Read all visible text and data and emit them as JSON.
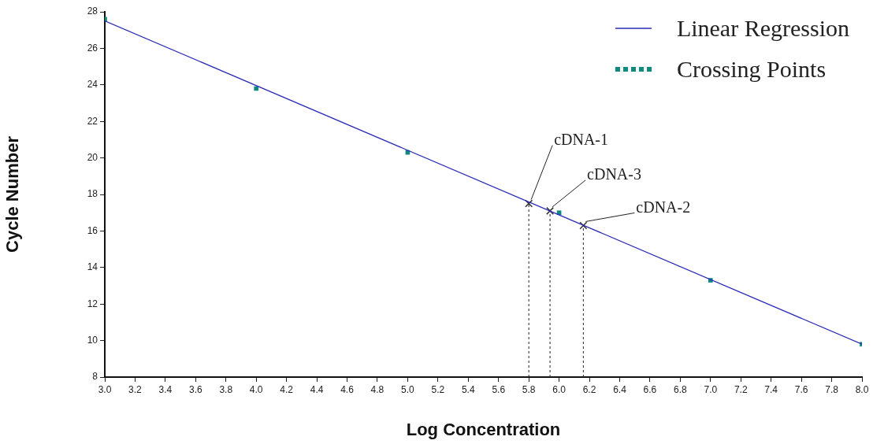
{
  "chart_data": {
    "type": "scatter",
    "xlabel": "Log Concentration",
    "ylabel": "Cycle Number",
    "xlim": [
      3,
      8
    ],
    "ylim": [
      8,
      28
    ],
    "xticks": [
      {
        "value": 3,
        "label": "3.0"
      },
      3.2,
      3.4,
      3.6,
      3.8,
      {
        "value": 4,
        "label": "4.0"
      },
      4.2,
      4.4,
      4.6,
      4.8,
      {
        "value": 5,
        "label": "5.0"
      },
      5.2,
      5.4,
      5.6,
      5.8,
      {
        "value": 6,
        "label": "6.0"
      },
      6.2,
      6.4,
      6.6,
      6.8,
      {
        "value": 7,
        "label": "7.0"
      },
      7.2,
      7.4,
      7.6,
      7.8,
      {
        "value": 8,
        "label": "8.0"
      }
    ],
    "yticks": [
      8,
      10,
      12,
      14,
      16,
      18,
      20,
      22,
      24,
      26,
      28
    ],
    "grid": false,
    "legend": "top right",
    "series": [
      {
        "name": "Linear Regression",
        "type": "line",
        "color": "#2a2ab8",
        "marker": "none",
        "line_style": "solid",
        "x": [
          3,
          8
        ],
        "values": [
          27.5,
          9.8
        ]
      },
      {
        "name": "Crossing Points",
        "type": "scatter",
        "color": "#108a80",
        "marker": "square",
        "x": [
          3,
          4,
          5,
          6,
          7,
          8
        ],
        "values": [
          27.6,
          23.8,
          20.3,
          17.0,
          13.3,
          9.8
        ]
      },
      {
        "type": "scatter",
        "color": "#333333",
        "marker": "cross",
        "x": [
          5.8,
          5.94,
          6.16
        ],
        "values": [
          17.5,
          17.1,
          16.3
        ]
      },
      {
        "type": "line",
        "color": "#222222",
        "marker": "none",
        "line_style": "dashed",
        "x": [
          5.8,
          5.8
        ],
        "values": [
          8,
          17.5
        ]
      },
      {
        "type": "line",
        "color": "#222222",
        "marker": "none",
        "line_style": "dashed",
        "x": [
          5.94,
          5.94
        ],
        "values": [
          8,
          17.1
        ]
      },
      {
        "type": "line",
        "color": "#222222",
        "marker": "none",
        "line_style": "dashed",
        "x": [
          6.16,
          6.16
        ],
        "values": [
          8,
          16.3
        ]
      }
    ],
    "annotations": [
      {
        "text": "cDNA-1",
        "x": 5.8,
        "y": 17.5
      },
      {
        "text": "cDNA-3",
        "x": 5.94,
        "y": 17.1
      },
      {
        "text": "cDNA-2",
        "x": 6.16,
        "y": 16.3
      }
    ]
  }
}
